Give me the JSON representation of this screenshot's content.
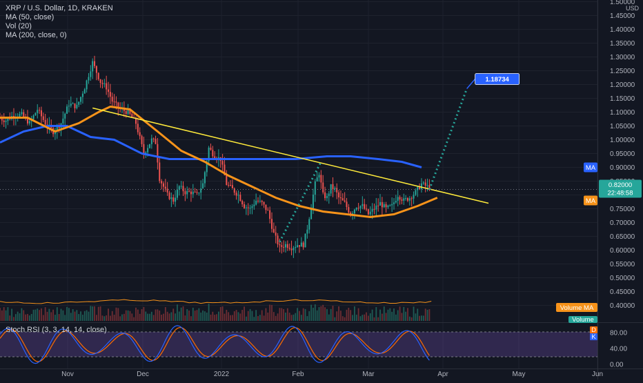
{
  "header": {
    "symbol_line": "XRP / U.S. Dollar, 1D, KRAKEN",
    "ma50_line": "MA (50, close)",
    "vol_line": "Vol (20)",
    "ma200_line": "MA (200, close, 0)",
    "currency": "USD"
  },
  "colors": {
    "background": "#131722",
    "grid": "#1e222d",
    "up": "#26a69a",
    "down": "#ef5350",
    "ma50": "#f7931a",
    "ma200": "#2962ff",
    "trendline": "#ffeb3b",
    "projection": "#26a69a",
    "target_label": "#2962ff",
    "rsi_k": "#2962ff",
    "rsi_d": "#ff6d00",
    "rsi_band": "#7e57c2"
  },
  "price_axis": {
    "labels": [
      "1.50000",
      "1.45000",
      "1.40000",
      "1.35000",
      "1.30000",
      "1.25000",
      "1.20000",
      "1.15000",
      "1.10000",
      "1.05000",
      "1.00000",
      "0.95000",
      "0.90000",
      "0.85000",
      "0.80000",
      "0.75000",
      "0.70000",
      "0.65000",
      "0.60000",
      "0.55000",
      "0.50000",
      "0.45000",
      "0.40000"
    ]
  },
  "time_axis": {
    "labels": [
      "Nov",
      "Dec",
      "2022",
      "Feb",
      "Mar",
      "Apr",
      "May",
      "Jun"
    ]
  },
  "tags": {
    "ma200": "MA",
    "last_price": "0.82000",
    "countdown": "22:48:58",
    "ma50": "MA",
    "volume_ma": "Volume MA",
    "volume": "Volume",
    "target": "1.18734",
    "rsi_d": "D",
    "rsi_k": "K"
  },
  "rsi": {
    "title": "Stoch RSI (3, 3, 14, 14, close)",
    "axis_labels": [
      "80.00",
      "40.00",
      "0.00"
    ]
  },
  "chart_data": {
    "type": "candlestick",
    "title": "XRP / U.S. Dollar, 1D, KRAKEN",
    "ylim": [
      0.39,
      1.51
    ],
    "x_months": [
      "Nov",
      "Dec",
      "2022",
      "Feb",
      "Mar",
      "Apr",
      "May",
      "Jun"
    ],
    "price_path": [
      [
        0,
        1.08
      ],
      [
        4,
        1.07
      ],
      [
        8,
        1.09
      ],
      [
        12,
        1.09
      ],
      [
        16,
        1.06
      ],
      [
        20,
        1.11
      ],
      [
        24,
        1.06
      ],
      [
        28,
        1.03
      ],
      [
        32,
        1.06
      ],
      [
        36,
        1.13
      ],
      [
        40,
        1.12
      ],
      [
        44,
        1.19
      ],
      [
        48,
        1.28
      ],
      [
        52,
        1.21
      ],
      [
        55,
        1.19
      ],
      [
        58,
        1.14
      ],
      [
        62,
        1.11
      ],
      [
        66,
        1.1
      ],
      [
        70,
        1.06
      ],
      [
        74,
        0.95
      ],
      [
        78,
        1.0
      ],
      [
        80,
        0.99
      ],
      [
        82,
        0.86
      ],
      [
        86,
        0.8
      ],
      [
        89,
        0.78
      ],
      [
        92,
        0.83
      ],
      [
        95,
        0.81
      ],
      [
        98,
        0.81
      ],
      [
        101,
        0.8
      ],
      [
        104,
        0.84
      ],
      [
        107,
        0.97
      ],
      [
        110,
        0.94
      ],
      [
        113,
        0.93
      ],
      [
        116,
        0.84
      ],
      [
        119,
        0.82
      ],
      [
        122,
        0.8
      ],
      [
        125,
        0.76
      ],
      [
        128,
        0.75
      ],
      [
        131,
        0.78
      ],
      [
        134,
        0.77
      ],
      [
        137,
        0.74
      ],
      [
        140,
        0.66
      ],
      [
        143,
        0.61
      ],
      [
        146,
        0.62
      ],
      [
        149,
        0.61
      ],
      [
        152,
        0.62
      ],
      [
        155,
        0.62
      ],
      [
        157,
        0.68
      ],
      [
        159,
        0.76
      ],
      [
        161,
        0.84
      ],
      [
        163,
        0.88
      ],
      [
        165,
        0.8
      ],
      [
        167,
        0.79
      ],
      [
        169,
        0.83
      ],
      [
        171,
        0.82
      ],
      [
        173,
        0.79
      ],
      [
        176,
        0.77
      ],
      [
        179,
        0.73
      ],
      [
        182,
        0.76
      ],
      [
        185,
        0.76
      ],
      [
        188,
        0.73
      ],
      [
        191,
        0.75
      ],
      [
        194,
        0.77
      ],
      [
        197,
        0.75
      ],
      [
        200,
        0.76
      ],
      [
        203,
        0.8
      ],
      [
        206,
        0.78
      ],
      [
        209,
        0.79
      ],
      [
        212,
        0.81
      ],
      [
        215,
        0.84
      ],
      [
        218,
        0.83
      ]
    ],
    "ma50": [
      [
        0,
        1.08
      ],
      [
        14,
        1.08
      ],
      [
        28,
        1.03
      ],
      [
        40,
        1.06
      ],
      [
        50,
        1.1
      ],
      [
        56,
        1.12
      ],
      [
        66,
        1.11
      ],
      [
        80,
        1.03
      ],
      [
        92,
        0.96
      ],
      [
        104,
        0.92
      ],
      [
        116,
        0.87
      ],
      [
        128,
        0.83
      ],
      [
        140,
        0.79
      ],
      [
        152,
        0.76
      ],
      [
        164,
        0.74
      ],
      [
        176,
        0.73
      ],
      [
        188,
        0.72
      ],
      [
        200,
        0.73
      ],
      [
        212,
        0.76
      ],
      [
        222,
        0.79
      ]
    ],
    "ma200": [
      [
        0,
        0.99
      ],
      [
        12,
        1.03
      ],
      [
        24,
        1.05
      ],
      [
        34,
        1.05
      ],
      [
        46,
        1.01
      ],
      [
        58,
        1.0
      ],
      [
        72,
        0.95
      ],
      [
        86,
        0.93
      ],
      [
        100,
        0.93
      ],
      [
        116,
        0.93
      ],
      [
        132,
        0.93
      ],
      [
        150,
        0.93
      ],
      [
        166,
        0.94
      ],
      [
        178,
        0.94
      ],
      [
        192,
        0.93
      ],
      [
        204,
        0.92
      ],
      [
        214,
        0.9
      ]
    ],
    "trendline": {
      "from": [
        47,
        1.115
      ],
      "to": [
        248,
        0.77
      ]
    },
    "projection": [
      [
        142,
        0.63
      ],
      [
        163,
        0.92
      ]
    ],
    "target_projection": {
      "from": [
        218,
        0.82
      ],
      "to": [
        237,
        1.185
      ],
      "label": "1.18734"
    },
    "rsi_range": [
      0,
      100
    ],
    "rsi_bands": [
      20,
      80
    ]
  }
}
